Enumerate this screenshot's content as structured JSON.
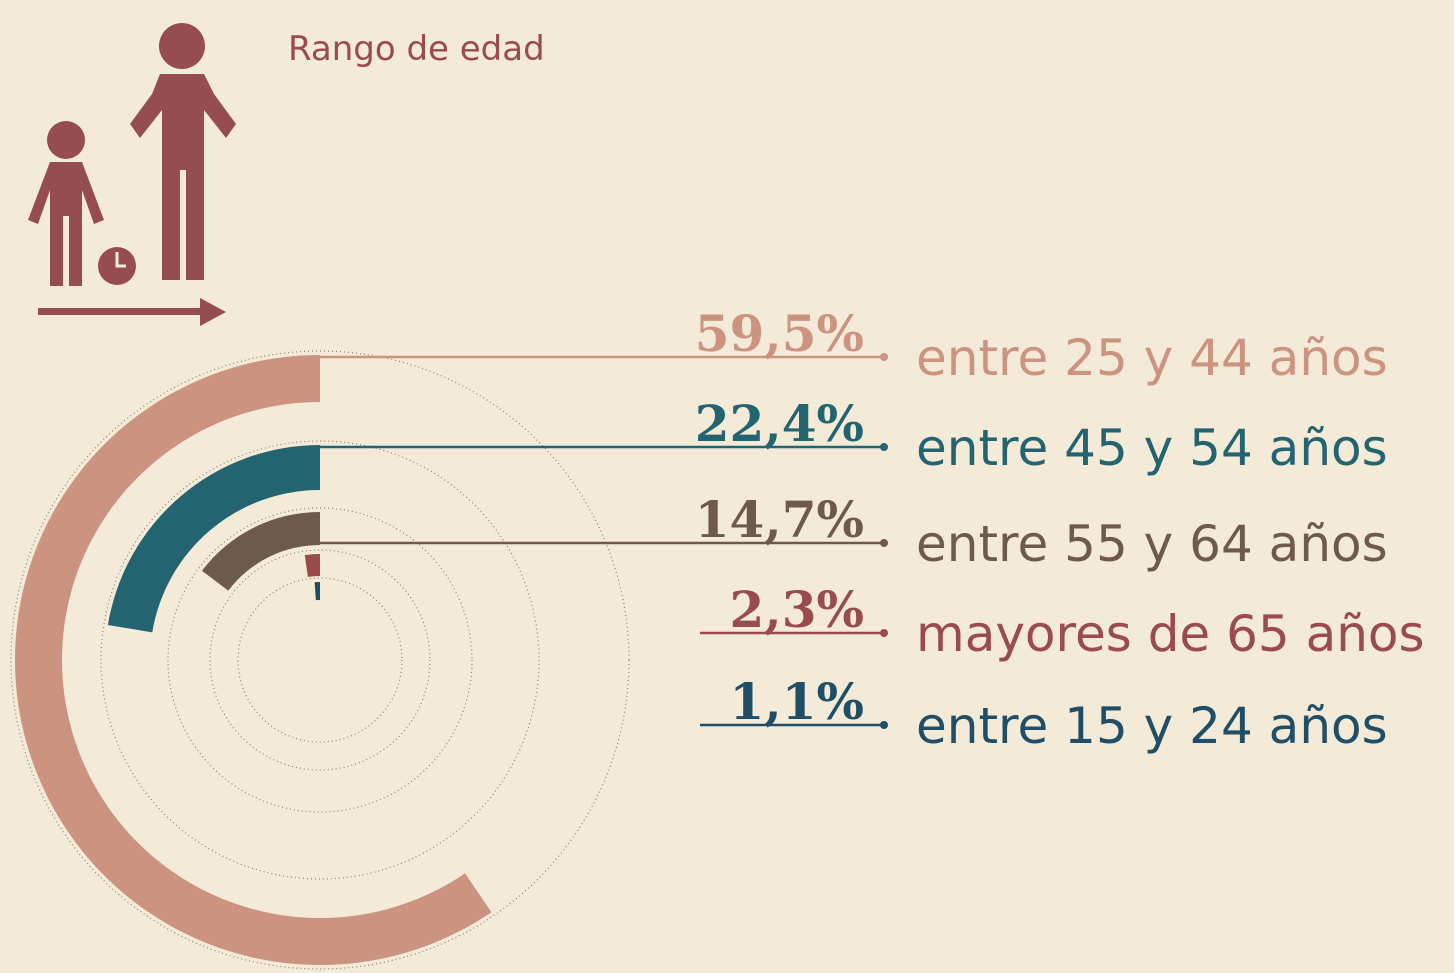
{
  "chart_data": {
    "type": "radial_bar",
    "title": "Rango de edad",
    "categories": [
      "entre 25 y 44 años",
      "entre 45 y 54 años",
      "entre 55 y 64 años",
      "mayores de 65 años",
      "entre 15 y 24 años"
    ],
    "values": [
      59.5,
      22.4,
      14.7,
      2.3,
      1.1
    ],
    "value_labels": [
      "59,5%",
      "22,4%",
      "14,7%",
      "2,3%",
      "1,1%"
    ],
    "colors": [
      "#cc9380",
      "#236470",
      "#6e5a4a",
      "#9a4b4b",
      "#1f4e66"
    ]
  }
}
